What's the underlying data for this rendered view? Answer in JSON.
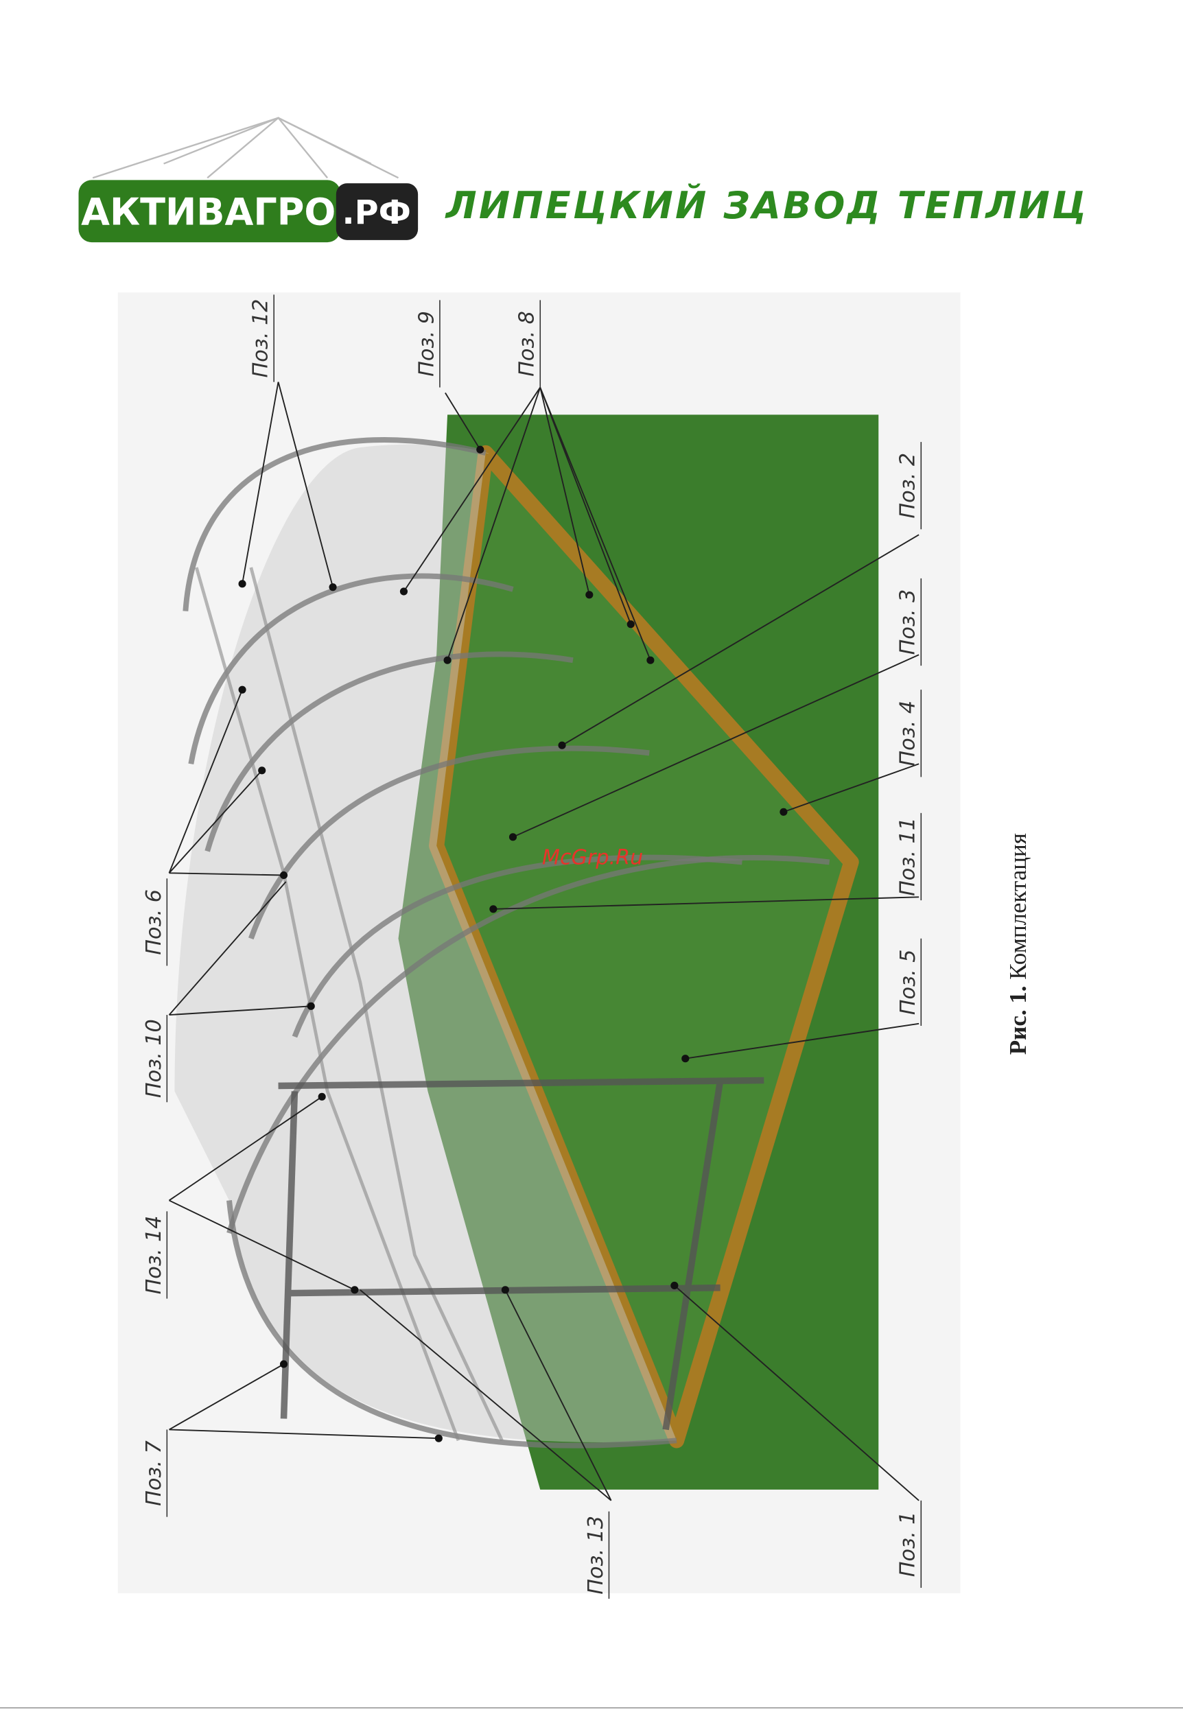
{
  "header": {
    "logo_main": "АКТИВАГРО",
    "logo_suffix": ".РФ",
    "title": "ЛИПЕЦКИЙ ЗАВОД ТЕПЛИЦ"
  },
  "figure": {
    "labels": [
      "Поз. 12",
      "Поз. 9",
      "Поз. 8",
      "Поз. 2",
      "Поз. 3",
      "Поз. 4",
      "Поз. 11",
      "Поз. 5",
      "Поз. 6",
      "Поз. 10",
      "Поз. 14",
      "Поз. 7",
      "Поз. 13",
      "Поз. 1"
    ],
    "watermark": "McGrp.Ru",
    "caption": {
      "number": "Рис. 1.",
      "text": "Комплектация"
    }
  }
}
